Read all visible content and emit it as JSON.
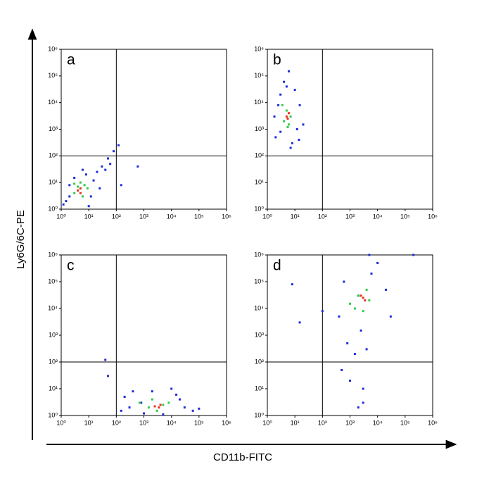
{
  "xlabel": "CD11b-FITC",
  "ylabel": "Ly6G/6C-PE",
  "chart_data": [
    {
      "type": "scatter",
      "label": "a",
      "xscale": "log",
      "yscale": "log",
      "xlim": [
        1,
        1000000
      ],
      "ylim": [
        1,
        1000000
      ],
      "xticks": [
        {
          "value": 1,
          "label": "10⁰"
        },
        {
          "value": 10,
          "label": "10¹"
        },
        {
          "value": 100,
          "label": "10²"
        },
        {
          "value": 1000,
          "label": "10³"
        },
        {
          "value": 10000,
          "label": "10⁴"
        },
        {
          "value": 100000,
          "label": "10⁵"
        },
        {
          "value": 1000000,
          "label": "10⁶"
        }
      ],
      "yticks": [
        {
          "value": 1,
          "label": "10⁰"
        },
        {
          "value": 10,
          "label": "10¹"
        },
        {
          "value": 100,
          "label": "10²"
        },
        {
          "value": 1000,
          "label": "10³"
        },
        {
          "value": 10000,
          "label": "10⁴"
        },
        {
          "value": 100000,
          "label": "10⁵"
        },
        {
          "value": 1000000,
          "label": "10⁶"
        }
      ],
      "gate": [
        100,
        100
      ],
      "series": [
        {
          "color": "#1f2bd6",
          "x": [
            1.5,
            2,
            3,
            8,
            12,
            15,
            20,
            30,
            50,
            80,
            120,
            1.2,
            25,
            40,
            600,
            150,
            10,
            2,
            6,
            60
          ],
          "y": [
            2,
            8,
            15,
            20,
            3,
            12,
            25,
            40,
            80,
            150,
            250,
            1.5,
            6,
            30,
            40,
            8,
            1.3,
            3,
            30,
            50
          ]
        },
        {
          "color": "#2ecc4a",
          "x": [
            3,
            4,
            6,
            7,
            5,
            9,
            3
          ],
          "y": [
            4,
            7,
            3,
            8,
            10,
            6,
            9
          ]
        },
        {
          "color": "#e8321e",
          "x": [
            4,
            5,
            5
          ],
          "y": [
            5,
            6,
            4
          ]
        }
      ]
    },
    {
      "type": "scatter",
      "label": "b",
      "xscale": "log",
      "yscale": "log",
      "xlim": [
        1,
        1000000
      ],
      "ylim": [
        1,
        1000000
      ],
      "xticks": [
        {
          "value": 1,
          "label": "10⁰"
        },
        {
          "value": 10,
          "label": "10¹"
        },
        {
          "value": 100,
          "label": "10²"
        },
        {
          "value": 1000,
          "label": "10³"
        },
        {
          "value": 10000,
          "label": "10⁴"
        },
        {
          "value": 100000,
          "label": "10⁵"
        },
        {
          "value": 1000000,
          "label": "10⁶"
        }
      ],
      "yticks": [
        {
          "value": 1,
          "label": "10⁰"
        },
        {
          "value": 10,
          "label": "10¹"
        },
        {
          "value": 100,
          "label": "10²"
        },
        {
          "value": 1000,
          "label": "10³"
        },
        {
          "value": 10000,
          "label": "10⁴"
        },
        {
          "value": 100000,
          "label": "10⁵"
        },
        {
          "value": 1000000,
          "label": "10⁶"
        }
      ],
      "gate": [
        100,
        100
      ],
      "series": [
        {
          "color": "#1f2bd6",
          "x": [
            2,
            3,
            8,
            12,
            15,
            1.8,
            4,
            10,
            6,
            3,
            20,
            7,
            2.5,
            14,
            5
          ],
          "y": [
            500,
            20000,
            300,
            1000,
            8000,
            3000,
            60000,
            30000,
            150000,
            800,
            1500,
            200,
            8000,
            400,
            40000
          ]
        },
        {
          "color": "#2ecc4a",
          "x": [
            4,
            5,
            6,
            7,
            3.5,
            5.5
          ],
          "y": [
            2000,
            5000,
            1500,
            3000,
            8000,
            1200
          ]
        },
        {
          "color": "#e8321e",
          "x": [
            5,
            6,
            5.5
          ],
          "y": [
            3000,
            4000,
            2500
          ]
        }
      ]
    },
    {
      "type": "scatter",
      "label": "c",
      "xscale": "log",
      "yscale": "log",
      "xlim": [
        1,
        1000000
      ],
      "ylim": [
        1,
        1000000
      ],
      "xticks": [
        {
          "value": 1,
          "label": "10⁰"
        },
        {
          "value": 10,
          "label": "10¹"
        },
        {
          "value": 100,
          "label": "10²"
        },
        {
          "value": 1000,
          "label": "10³"
        },
        {
          "value": 10000,
          "label": "10⁴"
        },
        {
          "value": 100000,
          "label": "10⁵"
        },
        {
          "value": 1000000,
          "label": "10⁶"
        }
      ],
      "yticks": [
        {
          "value": 1,
          "label": "10⁰"
        },
        {
          "value": 10,
          "label": "10¹"
        },
        {
          "value": 100,
          "label": "10²"
        },
        {
          "value": 1000,
          "label": "10³"
        },
        {
          "value": 10000,
          "label": "10⁴"
        },
        {
          "value": 100000,
          "label": "10⁵"
        },
        {
          "value": 1000000,
          "label": "10⁶"
        }
      ],
      "gate": [
        100,
        100
      ],
      "series": [
        {
          "color": "#1f2bd6",
          "x": [
            150,
            200,
            400,
            800,
            15000,
            30000,
            60000,
            1000,
            10000,
            20000,
            300,
            40,
            50,
            2000,
            5000,
            100000
          ],
          "y": [
            1.5,
            5,
            8,
            3,
            6,
            2,
            1.5,
            1.2,
            10,
            4,
            2,
            120,
            30,
            8,
            1.1,
            1.8
          ]
        },
        {
          "color": "#2ecc4a",
          "x": [
            700,
            1500,
            2000,
            5000,
            8000,
            3000
          ],
          "y": [
            3,
            2,
            4,
            2.5,
            3,
            1.5
          ]
        },
        {
          "color": "#e8321e",
          "x": [
            2500,
            3500,
            4000
          ],
          "y": [
            2.2,
            2,
            2.5
          ]
        }
      ]
    },
    {
      "type": "scatter",
      "label": "d",
      "xscale": "log",
      "yscale": "log",
      "xlim": [
        1,
        1000000
      ],
      "ylim": [
        1,
        1000000
      ],
      "xticks": [
        {
          "value": 1,
          "label": "10⁰"
        },
        {
          "value": 10,
          "label": "10¹"
        },
        {
          "value": 100,
          "label": "10²"
        },
        {
          "value": 1000,
          "label": "10³"
        },
        {
          "value": 10000,
          "label": "10⁴"
        },
        {
          "value": 100000,
          "label": "10⁵"
        },
        {
          "value": 1000000,
          "label": "10⁶"
        }
      ],
      "yticks": [
        {
          "value": 1,
          "label": "10⁰"
        },
        {
          "value": 10,
          "label": "10¹"
        },
        {
          "value": 100,
          "label": "10²"
        },
        {
          "value": 1000,
          "label": "10³"
        },
        {
          "value": 10000,
          "label": "10⁴"
        },
        {
          "value": 100000,
          "label": "10⁵"
        },
        {
          "value": 1000000,
          "label": "10⁶"
        }
      ],
      "gate": [
        100,
        100
      ],
      "series": [
        {
          "color": "#1f2bd6",
          "x": [
            400,
            600,
            800,
            1500,
            2000,
            5000,
            10000,
            20000,
            3000,
            1000,
            2500,
            4000,
            30000,
            8,
            15,
            500,
            100,
            3000,
            200000,
            6000,
            2000
          ],
          "y": [
            5000,
            100000,
            500,
            200,
            2,
            1000000,
            500000,
            50000,
            3,
            20,
            1500,
            300,
            5000,
            80000,
            3000,
            50,
            8000,
            10,
            1000000,
            200000,
            30000
          ]
        },
        {
          "color": "#2ecc4a",
          "x": [
            1500,
            2000,
            3000,
            4000,
            5000,
            1000
          ],
          "y": [
            10000,
            30000,
            8000,
            50000,
            20000,
            15000
          ]
        },
        {
          "color": "#e8321e",
          "x": [
            3000,
            3500,
            2500
          ],
          "y": [
            25000,
            20000,
            30000
          ]
        }
      ]
    }
  ]
}
